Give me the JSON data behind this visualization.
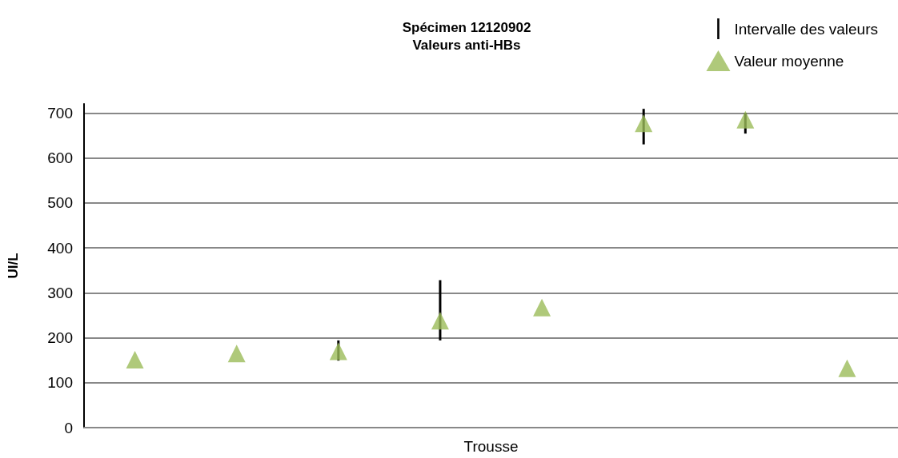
{
  "chart_data": {
    "type": "scatter",
    "title": "Spécimen 12120902\nValeurs anti-HBs",
    "xlabel": "Trousse",
    "ylabel": "UI/L",
    "categories": [
      null,
      null,
      null,
      null,
      null,
      null,
      null,
      null
    ],
    "series": [
      {
        "name": "Valeur moyenne",
        "color": "#9bbb59",
        "values": [
          151,
          165,
          170,
          238,
          267,
          677,
          685,
          132
        ],
        "errors": [
          null,
          null,
          [
            149,
            194
          ],
          [
            194,
            328
          ],
          null,
          [
            630,
            709
          ],
          [
            654,
            700
          ],
          null
        ]
      }
    ],
    "annotations": [
      "Intervalle des valeurs"
    ],
    "marker": "triangle",
    "ylim": [
      0,
      720
    ],
    "yticks": [
      0,
      100,
      200,
      300,
      400,
      500,
      600,
      700
    ],
    "grid": "y",
    "legend": "top right"
  }
}
